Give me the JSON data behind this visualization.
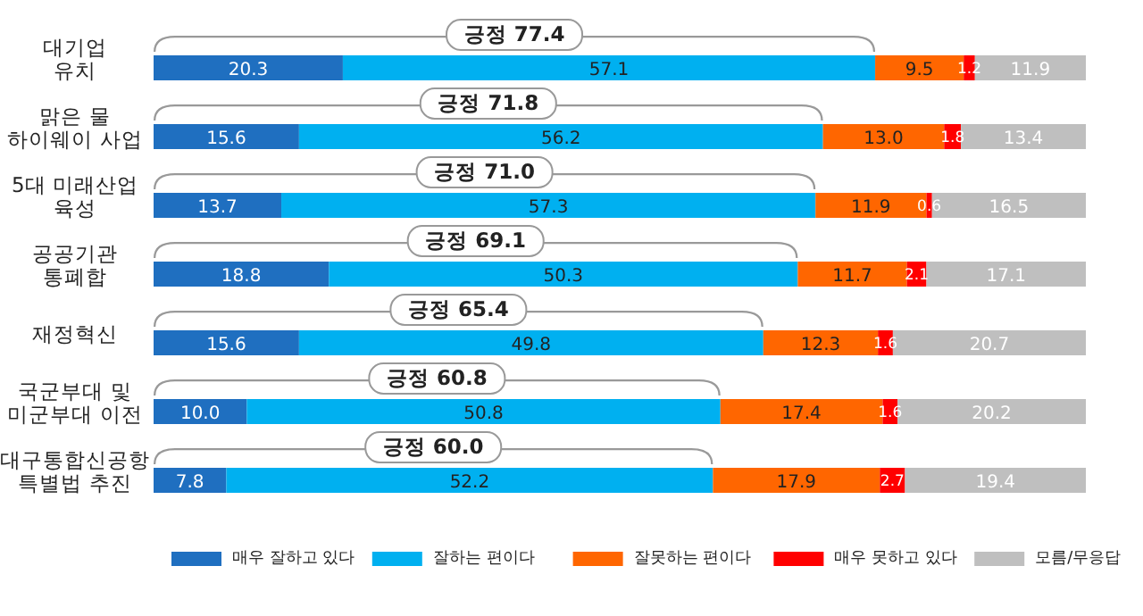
{
  "chart_data": {
    "type": "bar",
    "orientation": "horizontal",
    "stacked": true,
    "legend": "bottom",
    "categories": [
      "대기업\n유치",
      "맑은 물\n하이웨이 사업",
      "5대 미래산업\n육성",
      "공공기관\n통폐합",
      "재정혁신",
      "국군부대 및\n미군부대 이전",
      "대구통합신공항\n특별법 추진"
    ],
    "series": [
      {
        "name": "매우 잘하고 있다",
        "color": "#1f6fc0",
        "values": [
          20.3,
          15.6,
          13.7,
          18.8,
          15.6,
          10.0,
          7.8
        ],
        "value_labels": [
          "20.3",
          "15.6",
          "13.7",
          "18.8",
          "15.6",
          "10.0",
          "7.8"
        ]
      },
      {
        "name": "잘하는 편이다",
        "color": "#00b0f0",
        "values": [
          57.1,
          56.2,
          57.3,
          50.3,
          49.8,
          50.8,
          52.2
        ],
        "value_labels": [
          "57.1",
          "56.2",
          "57.3",
          "50.3",
          "49.8",
          "50.8",
          "52.2"
        ]
      },
      {
        "name": "잘못하는 편이다",
        "color": "#ff6600",
        "values": [
          9.5,
          13.0,
          11.9,
          11.7,
          12.3,
          17.4,
          17.9
        ],
        "value_labels": [
          "9.5",
          "13.0",
          "11.9",
          "11.7",
          "12.3",
          "17.4",
          "17.9"
        ]
      },
      {
        "name": "매우 못하고 있다",
        "color": "#ff0000",
        "values": [
          1.2,
          1.8,
          0.6,
          2.1,
          1.6,
          1.6,
          2.7
        ],
        "value_labels": [
          "1.2",
          "1.8",
          "0.6",
          "2.1",
          "1.6",
          "1.6",
          "2.7"
        ]
      },
      {
        "name": "모름/무응답",
        "color": "#bfbfbf",
        "values": [
          11.9,
          13.4,
          16.5,
          17.1,
          20.7,
          20.2,
          19.4
        ],
        "value_labels": [
          "11.9",
          "13.4",
          "16.5",
          "17.1",
          "20.7",
          "20.2",
          "19.4"
        ]
      }
    ],
    "annotations": [
      "긍정 77.4",
      "긍정 71.8",
      "긍정 71.0",
      "긍정 69.1",
      "긍정 65.4",
      "긍정 60.8",
      "긍정 60.0"
    ]
  }
}
